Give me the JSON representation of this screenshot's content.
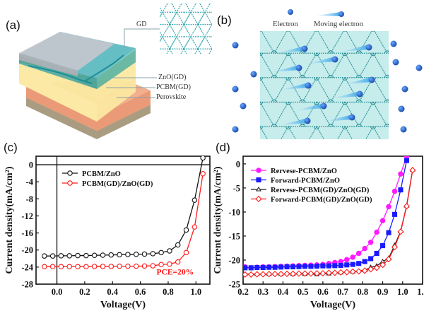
{
  "panels": {
    "a": {
      "label": "(a)",
      "layers": [
        "GD",
        "ZnO(GD)",
        "PCBM(GD)",
        "Perovskite"
      ]
    },
    "b": {
      "label": "(b)",
      "legend": [
        "Electron",
        "Moving electron"
      ]
    },
    "c": {
      "label": "(c)"
    },
    "d": {
      "label": "(d)"
    }
  },
  "colors": {
    "teal": "#1f9aa0",
    "electron": "#1f5fc4",
    "lattice_bg": "#c6ecec"
  },
  "chart_data": [
    {
      "type": "line",
      "title": "",
      "xlabel": "Voltage(V)",
      "ylabel": "Current density(mA/cm²)",
      "xlim": [
        -0.15,
        1.1
      ],
      "ylim": [
        -28,
        2
      ],
      "xticks": [
        "0.0",
        "0.2",
        "0.4",
        "0.6",
        "0.8",
        "1.0"
      ],
      "xtick_values": [
        0,
        0.2,
        0.4,
        0.6,
        0.8,
        1.0
      ],
      "yticks": [
        "0",
        "-4",
        "-8",
        "-12",
        "-16",
        "-20",
        "-24",
        "-28"
      ],
      "ytick_values": [
        0,
        -4,
        -8,
        -12,
        -16,
        -20,
        -24,
        -28
      ],
      "zero_lines": true,
      "legend_position": "top-left",
      "annotation": {
        "text": "PCE=20%",
        "color": "#ff1a1a",
        "x": 0.85,
        "y": -25.8
      },
      "series": [
        {
          "name": "PCBM/ZnO",
          "color": "#111111",
          "marker": "circle",
          "filled": false,
          "x": [
            -0.09,
            -0.03,
            0.03,
            0.09,
            0.15,
            0.21,
            0.27,
            0.33,
            0.39,
            0.45,
            0.51,
            0.57,
            0.63,
            0.69,
            0.75,
            0.81,
            0.87,
            0.93,
            0.99,
            1.05
          ],
          "y": [
            -21.4,
            -21.4,
            -21.35,
            -21.35,
            -21.3,
            -21.3,
            -21.25,
            -21.2,
            -21.15,
            -21.1,
            -21.05,
            -21.0,
            -20.95,
            -20.85,
            -20.6,
            -20.2,
            -18.8,
            -15.3,
            -8.3,
            1.6
          ]
        },
        {
          "name": "PCBM(GD)/ZnO(GD)",
          "color": "#ff1a1a",
          "marker": "circle",
          "filled": false,
          "x": [
            -0.09,
            -0.03,
            0.03,
            0.09,
            0.15,
            0.21,
            0.27,
            0.33,
            0.39,
            0.45,
            0.51,
            0.57,
            0.63,
            0.69,
            0.75,
            0.81,
            0.87,
            0.93,
            0.99,
            1.05
          ],
          "y": [
            -23.9,
            -23.9,
            -23.9,
            -23.9,
            -23.9,
            -23.9,
            -23.85,
            -23.85,
            -23.85,
            -23.8,
            -23.8,
            -23.8,
            -23.75,
            -23.7,
            -23.4,
            -23.3,
            -22.8,
            -20.6,
            -14.6,
            -2.1
          ]
        }
      ]
    },
    {
      "type": "line",
      "title": "",
      "xlabel": "Voltage(V)",
      "ylabel": "Current density(mA/cm²)",
      "xlim": [
        0.2,
        1.1
      ],
      "ylim": [
        -25,
        1.6
      ],
      "xticks": [
        "0.2",
        "0.3",
        "0.4",
        "0.5",
        "0.6",
        "0.7",
        "0.8",
        "0.9",
        "1.0",
        "1.1"
      ],
      "xtick_values": [
        0.2,
        0.3,
        0.4,
        0.5,
        0.6,
        0.7,
        0.8,
        0.9,
        1.0,
        1.1
      ],
      "yticks": [
        "0",
        "-5",
        "-10",
        "-15",
        "-20",
        "-25"
      ],
      "ytick_values": [
        0,
        -5,
        -10,
        -15,
        -20,
        -25
      ],
      "zero_lines": false,
      "legend_position": "top-left",
      "series": [
        {
          "name": "Rervese-PCBM/ZnO",
          "color": "#ff1aff",
          "marker": "circle",
          "filled": true,
          "x": [
            0.21,
            0.24,
            0.27,
            0.3,
            0.33,
            0.36,
            0.39,
            0.42,
            0.45,
            0.48,
            0.51,
            0.54,
            0.57,
            0.6,
            0.63,
            0.66,
            0.69,
            0.72,
            0.75,
            0.78,
            0.81,
            0.84,
            0.87,
            0.9,
            0.93,
            0.96,
            0.99,
            1.02
          ],
          "y": [
            -21.4,
            -21.6,
            -21.5,
            -21.4,
            -21.4,
            -21.35,
            -21.3,
            -21.25,
            -21.2,
            -21.15,
            -21.1,
            -21.05,
            -21.0,
            -20.9,
            -20.7,
            -20.5,
            -20.3,
            -19.9,
            -19.4,
            -18.6,
            -17.6,
            -16.3,
            -14.2,
            -11.8,
            -8.9,
            -5.7,
            -2.1,
            1.6
          ]
        },
        {
          "name": "Forward-PCBM/ZnO",
          "color": "#1a1aff",
          "marker": "square",
          "filled": true,
          "x": [
            0.21,
            0.24,
            0.27,
            0.3,
            0.33,
            0.36,
            0.39,
            0.42,
            0.45,
            0.48,
            0.51,
            0.54,
            0.57,
            0.6,
            0.63,
            0.66,
            0.69,
            0.72,
            0.75,
            0.78,
            0.81,
            0.84,
            0.87,
            0.9,
            0.93,
            0.96,
            0.99,
            1.02
          ],
          "y": [
            -21.6,
            -21.6,
            -21.55,
            -21.55,
            -21.5,
            -21.5,
            -21.45,
            -21.4,
            -21.4,
            -21.35,
            -21.3,
            -21.3,
            -21.25,
            -21.2,
            -21.2,
            -21.15,
            -21.1,
            -21.0,
            -20.9,
            -20.7,
            -20.3,
            -19.7,
            -18.6,
            -17.0,
            -14.3,
            -10.5,
            -5.4,
            0.7
          ]
        },
        {
          "name": "Rervese-PCBM(GD)/ZnO(GD)",
          "color": "#222222",
          "marker": "triangle",
          "filled": false,
          "x": [
            0.21,
            0.27,
            0.33,
            0.39,
            0.45,
            0.51,
            0.57,
            0.63,
            0.69,
            0.75,
            0.81,
            0.84,
            0.87,
            0.9,
            0.93,
            0.96,
            0.99,
            1.02,
            1.05
          ],
          "y": [
            -22.9,
            -22.9,
            -22.9,
            -22.9,
            -22.9,
            -22.9,
            -22.95,
            -22.8,
            -22.6,
            -22.4,
            -22.1,
            -21.5,
            -21.2,
            -20.3,
            -19.6,
            -16.9,
            -14.0,
            -8.7,
            -1.2
          ]
        },
        {
          "name": "Forward-PCBM(GD)/ZnO(GD)",
          "color": "#ff1a1a",
          "marker": "diamond",
          "filled": false,
          "x": [
            0.21,
            0.24,
            0.27,
            0.3,
            0.33,
            0.36,
            0.39,
            0.42,
            0.45,
            0.48,
            0.51,
            0.54,
            0.57,
            0.6,
            0.63,
            0.66,
            0.69,
            0.72,
            0.75,
            0.78,
            0.81,
            0.84,
            0.87,
            0.9,
            0.93,
            0.96,
            0.99,
            1.02,
            1.05
          ],
          "y": [
            -23.0,
            -23.0,
            -22.95,
            -22.95,
            -22.9,
            -22.9,
            -22.9,
            -22.85,
            -22.85,
            -22.8,
            -22.8,
            -22.8,
            -22.75,
            -22.75,
            -22.65,
            -22.65,
            -22.55,
            -22.5,
            -22.4,
            -22.35,
            -22.2,
            -21.9,
            -21.6,
            -21.0,
            -19.8,
            -17.3,
            -14.1,
            -8.8,
            -1.3
          ]
        }
      ]
    }
  ]
}
